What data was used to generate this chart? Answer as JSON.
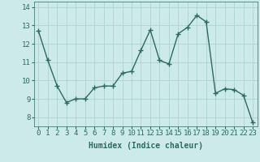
{
  "x": [
    0,
    1,
    2,
    3,
    4,
    5,
    6,
    7,
    8,
    9,
    10,
    11,
    12,
    13,
    14,
    15,
    16,
    17,
    18,
    19,
    20,
    21,
    22,
    23
  ],
  "y": [
    12.7,
    11.1,
    9.7,
    8.8,
    9.0,
    9.0,
    9.6,
    9.7,
    9.7,
    10.4,
    10.5,
    11.65,
    12.75,
    11.1,
    10.9,
    12.55,
    12.9,
    13.55,
    13.2,
    9.3,
    9.55,
    9.5,
    9.2,
    7.7
  ],
  "line_color": "#2d6b5e",
  "marker": "+",
  "marker_size": 4,
  "bg_color": "#cceae7",
  "grid_color": "#aed4d0",
  "xlabel": "Humidex (Indice chaleur)",
  "ylim": [
    7.5,
    14.3
  ],
  "xlim": [
    -0.5,
    23.5
  ],
  "yticks": [
    8,
    9,
    10,
    11,
    12,
    13,
    14
  ],
  "xticks": [
    0,
    1,
    2,
    3,
    4,
    5,
    6,
    7,
    8,
    9,
    10,
    11,
    12,
    13,
    14,
    15,
    16,
    17,
    18,
    19,
    20,
    21,
    22,
    23
  ],
  "xlabel_fontsize": 7,
  "tick_fontsize": 6.5,
  "line_width": 1.0
}
